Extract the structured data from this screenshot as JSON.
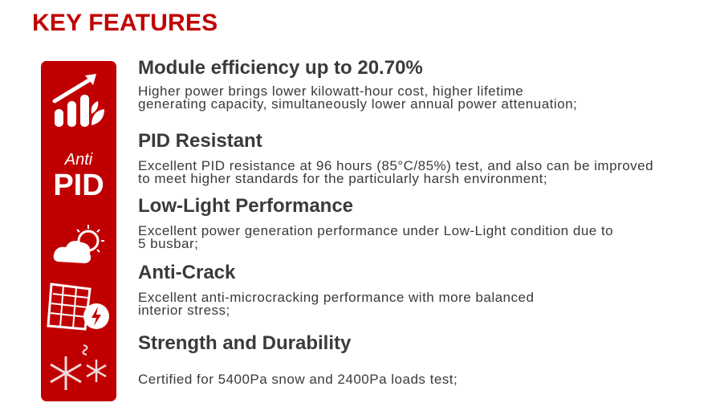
{
  "title": "KEY FEATURES",
  "accent_color": "#c00000",
  "features": [
    {
      "icon": "growth-chart-leaf-icon",
      "heading": "Module efficiency up to 20.70%",
      "lines": [
        "Higher power brings lower kilowatt-hour cost, higher lifetime",
        "generating capacity, simultaneously lower annual power attenuation;"
      ]
    },
    {
      "icon": "anti-pid-icon",
      "icon_text_small": "Anti",
      "icon_text_large": "PID",
      "heading": "PID Resistant",
      "lines": [
        "Excellent PID resistance at 96 hours (85°C/85%) test, and also can be improved",
        "to meet higher standards for the particularly harsh environment;"
      ]
    },
    {
      "icon": "cloud-sun-icon",
      "heading": "Low-Light Performance",
      "lines": [
        "Excellent power generation performance under Low-Light condition due to",
        "5 busbar;"
      ]
    },
    {
      "icon": "solar-panel-bolt-icon",
      "heading": "Anti-Crack",
      "lines": [
        "Excellent anti-microcracking performance with more balanced",
        "interior stress;"
      ]
    },
    {
      "icon": "snowflake-wind-icon",
      "heading": "Strength and Durability",
      "lines": [
        "Certified for 5400Pa snow and 2400Pa loads test;"
      ]
    }
  ]
}
